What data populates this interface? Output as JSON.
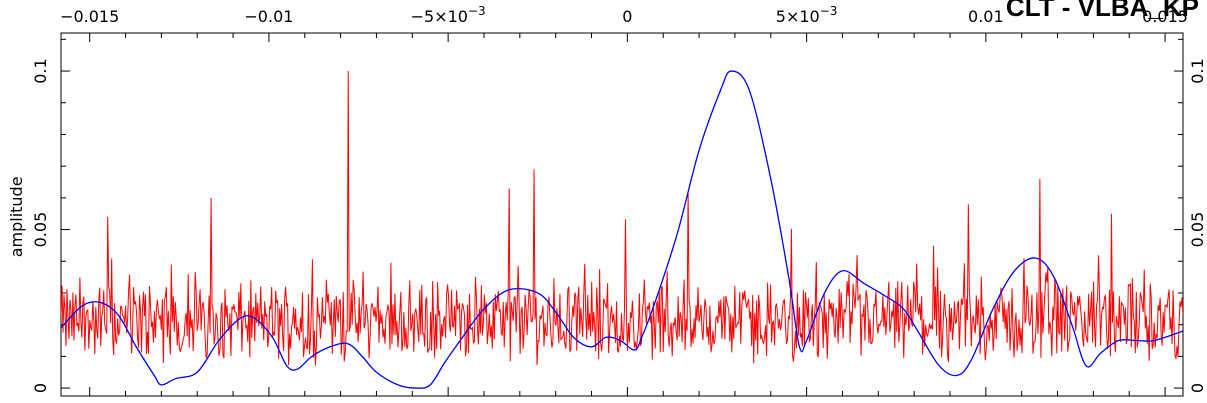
{
  "corner_title": "CLT - VLBA_KP",
  "colors": {
    "background": "#ffffff",
    "axis": "#000000",
    "amplitude_series": "#ff0000",
    "model_series": "#0000ff"
  },
  "chart_data": {
    "type": "line",
    "title": "",
    "ylabel": "amplitude",
    "ylabel_color": "#ff0000",
    "xlim": [
      -0.0158,
      0.0155
    ],
    "ylim": [
      -0.0025,
      0.112
    ],
    "grid": false,
    "top_axis_ticks": [
      {
        "value": -0.015,
        "label": "−0.015"
      },
      {
        "value": -0.01,
        "label": "−0.01"
      },
      {
        "value": -0.005,
        "label": "−5×10",
        "exponent": "−3"
      },
      {
        "value": 0,
        "label": "0"
      },
      {
        "value": 0.005,
        "label": "5×10",
        "exponent": "−3"
      },
      {
        "value": 0.01,
        "label": "0.01"
      },
      {
        "value": 0.015,
        "label": "0.015"
      }
    ],
    "y_ticks": [
      {
        "value": 0,
        "label": "0"
      },
      {
        "value": 0.05,
        "label": "0.05"
      },
      {
        "value": 0.1,
        "label": "0.1"
      }
    ],
    "series": [
      {
        "color": "#ff0000",
        "style": "noise-line",
        "n_points": 1130,
        "baseline": 0.021,
        "spread": 0.01,
        "min": 0.0,
        "spikes": [
          {
            "x": -0.0078,
            "y": 0.1
          },
          {
            "x": 0.0115,
            "y": 0.066
          },
          {
            "x": -0.0026,
            "y": 0.069
          },
          {
            "x": 0.0017,
            "y": 0.062
          },
          {
            "x": -0.0116,
            "y": 0.06
          },
          {
            "x": 0.0095,
            "y": 0.064
          },
          {
            "x": 0.0095,
            "y": 0.058
          },
          {
            "x": -0.0033,
            "y": 0.063
          },
          {
            "x": -0.0145,
            "y": 0.054
          },
          {
            "x": 0.0135,
            "y": 0.055
          }
        ]
      },
      {
        "color": "#0000ff",
        "style": "smooth-line",
        "points": [
          [
            -0.0158,
            0.019
          ],
          [
            -0.0152,
            0.026
          ],
          [
            -0.0147,
            0.027
          ],
          [
            -0.0142,
            0.023
          ],
          [
            -0.0137,
            0.013
          ],
          [
            -0.0132,
            0.004
          ],
          [
            -0.013,
            0.001
          ],
          [
            -0.0126,
            0.003
          ],
          [
            -0.012,
            0.005
          ],
          [
            -0.0114,
            0.015
          ],
          [
            -0.0108,
            0.022
          ],
          [
            -0.0104,
            0.022
          ],
          [
            -0.0099,
            0.016
          ],
          [
            -0.0095,
            0.007
          ],
          [
            -0.0092,
            0.006
          ],
          [
            -0.0088,
            0.01
          ],
          [
            -0.0083,
            0.013
          ],
          [
            -0.0078,
            0.014
          ],
          [
            -0.0074,
            0.01
          ],
          [
            -0.007,
            0.005
          ],
          [
            -0.0064,
            0.001
          ],
          [
            -0.0059,
            0.0
          ],
          [
            -0.0055,
            0.001
          ],
          [
            -0.0051,
            0.008
          ],
          [
            -0.0046,
            0.016
          ],
          [
            -0.004,
            0.025
          ],
          [
            -0.0033,
            0.031
          ],
          [
            -0.0025,
            0.03
          ],
          [
            -0.002,
            0.024
          ],
          [
            -0.0015,
            0.016
          ],
          [
            -0.001,
            0.013
          ],
          [
            -0.0006,
            0.016
          ],
          [
            -0.0002,
            0.015
          ],
          [
            0.0002,
            0.012
          ],
          [
            0.0004,
            0.016
          ],
          [
            0.0008,
            0.028
          ],
          [
            0.0014,
            0.049
          ],
          [
            0.002,
            0.075
          ],
          [
            0.0026,
            0.094
          ],
          [
            0.0029,
            0.1
          ],
          [
            0.0034,
            0.094
          ],
          [
            0.004,
            0.066
          ],
          [
            0.0045,
            0.035
          ],
          [
            0.0048,
            0.013
          ],
          [
            0.005,
            0.015
          ],
          [
            0.0055,
            0.03
          ],
          [
            0.006,
            0.037
          ],
          [
            0.0066,
            0.033
          ],
          [
            0.0072,
            0.029
          ],
          [
            0.0077,
            0.025
          ],
          [
            0.0081,
            0.018
          ],
          [
            0.0087,
            0.007
          ],
          [
            0.0092,
            0.004
          ],
          [
            0.0096,
            0.009
          ],
          [
            0.0102,
            0.025
          ],
          [
            0.0108,
            0.037
          ],
          [
            0.0114,
            0.041
          ],
          [
            0.0119,
            0.035
          ],
          [
            0.0124,
            0.02
          ],
          [
            0.0128,
            0.007
          ],
          [
            0.0132,
            0.011
          ],
          [
            0.0137,
            0.015
          ],
          [
            0.0142,
            0.015
          ],
          [
            0.0147,
            0.015
          ],
          [
            0.0155,
            0.018
          ]
        ]
      }
    ]
  }
}
